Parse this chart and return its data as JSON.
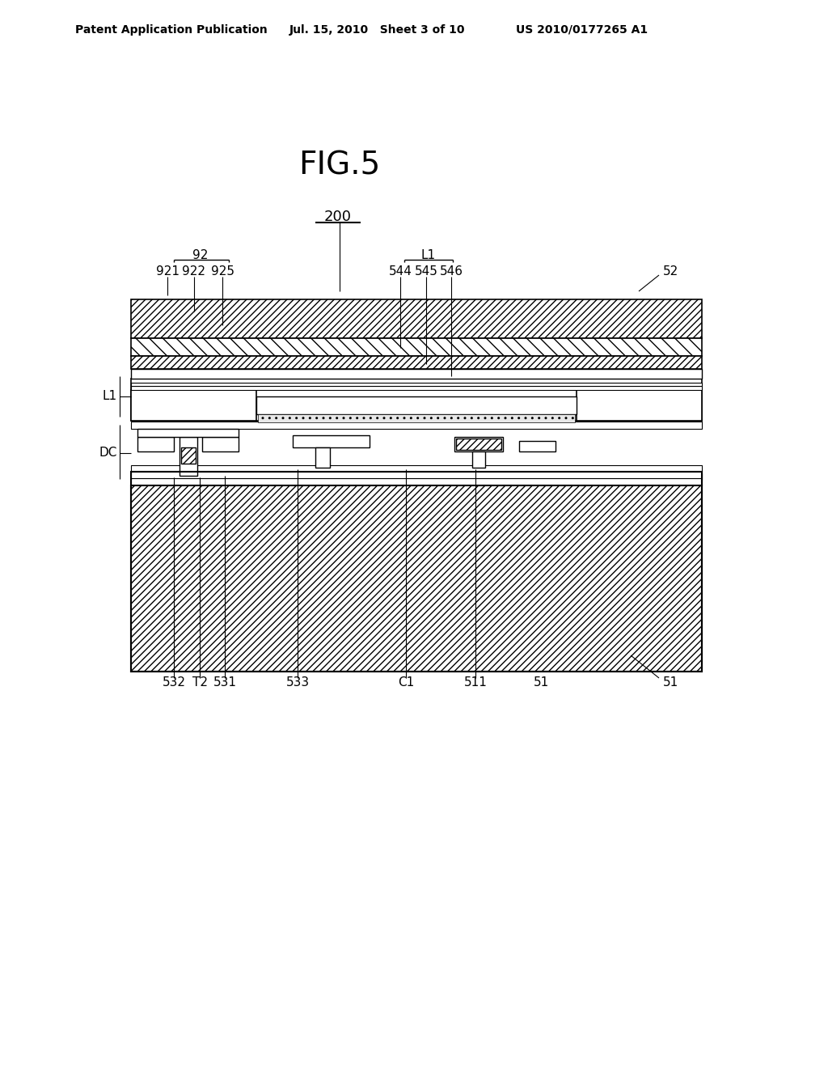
{
  "header_left": "Patent Application Publication",
  "header_mid": "Jul. 15, 2010   Sheet 3 of 10",
  "header_right": "US 2010/0177265 A1",
  "fig_label": "FIG.5",
  "bg_color": "#ffffff"
}
